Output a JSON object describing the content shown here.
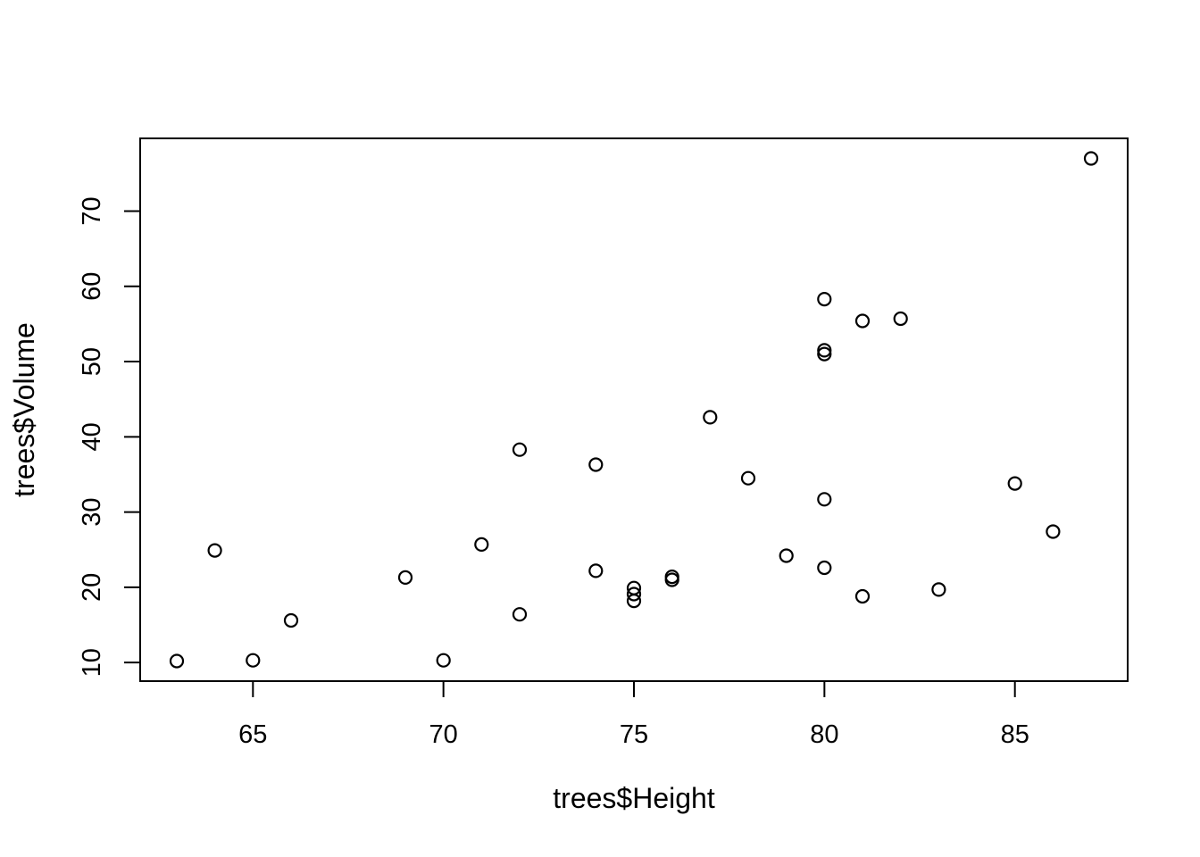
{
  "chart_data": {
    "type": "scatter",
    "title": "",
    "xlabel": "trees$Height",
    "ylabel": "trees$Volume",
    "x_ticks": [
      65,
      70,
      75,
      80,
      85
    ],
    "y_ticks": [
      10,
      20,
      30,
      40,
      50,
      60,
      70
    ],
    "xlim": [
      62.04,
      87.96
    ],
    "ylim": [
      7.53,
      79.67
    ],
    "grid": false,
    "legend": false,
    "marker": "open-circle",
    "colors": {
      "stroke": "#000000",
      "background": "#ffffff"
    },
    "points": [
      [
        70,
        10.3
      ],
      [
        65,
        10.3
      ],
      [
        63,
        10.2
      ],
      [
        72,
        16.4
      ],
      [
        81,
        18.8
      ],
      [
        83,
        19.7
      ],
      [
        66,
        15.6
      ],
      [
        75,
        18.2
      ],
      [
        80,
        22.6
      ],
      [
        75,
        19.9
      ],
      [
        79,
        24.2
      ],
      [
        76,
        21.0
      ],
      [
        76,
        21.4
      ],
      [
        69,
        21.3
      ],
      [
        75,
        19.1
      ],
      [
        74,
        22.2
      ],
      [
        85,
        33.8
      ],
      [
        86,
        27.4
      ],
      [
        71,
        25.7
      ],
      [
        64,
        24.9
      ],
      [
        78,
        34.5
      ],
      [
        80,
        31.7
      ],
      [
        74,
        36.3
      ],
      [
        72,
        38.3
      ],
      [
        77,
        42.6
      ],
      [
        81,
        55.4
      ],
      [
        82,
        55.7
      ],
      [
        80,
        58.3
      ],
      [
        80,
        51.5
      ],
      [
        80,
        51.0
      ],
      [
        87,
        77.0
      ]
    ]
  }
}
